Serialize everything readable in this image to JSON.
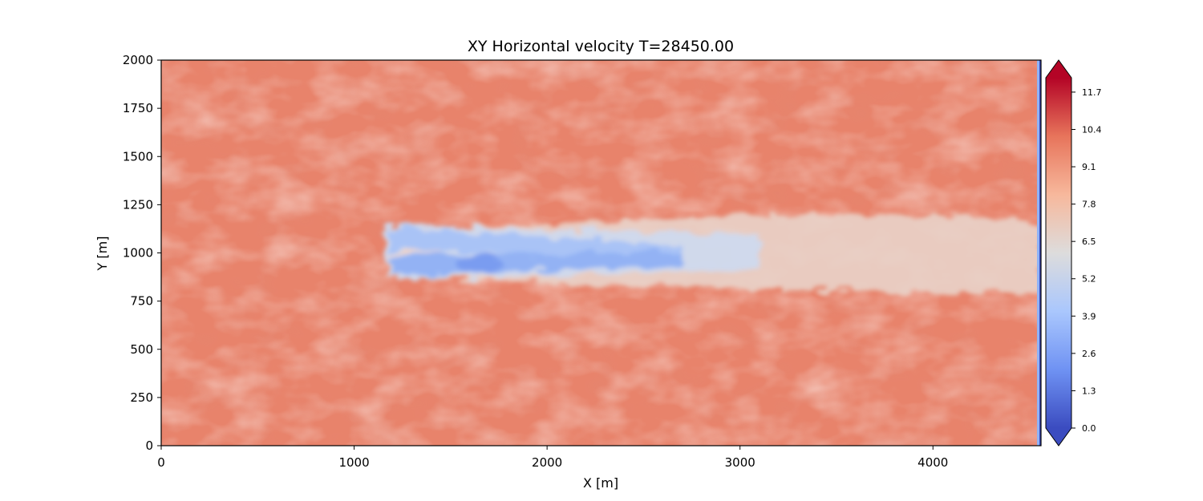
{
  "chart_data": {
    "type": "heatmap",
    "title": "XY Horizontal velocity T=28450.00",
    "xlabel": "X [m]",
    "ylabel": "Y [m]",
    "xlim": [
      0,
      4560
    ],
    "ylim": [
      0,
      2000
    ],
    "x_ticks": [
      "0",
      "1000",
      "2000",
      "3000",
      "4000"
    ],
    "y_ticks": [
      "0",
      "250",
      "500",
      "750",
      "1000",
      "1250",
      "1500",
      "1750",
      "2000"
    ],
    "colorbar": {
      "min": 0.0,
      "max": 12.2,
      "extend": "both",
      "ticks": [
        "0.0",
        "1.3",
        "2.6",
        "3.9",
        "5.2",
        "6.5",
        "7.8",
        "9.1",
        "10.4",
        "11.7"
      ],
      "colormap": "coolwarm",
      "colors": [
        "#3b4cc0",
        "#6f92f3",
        "#aac7fd",
        "#dddcdc",
        "#f7b89c",
        "#e7745b",
        "#b40426"
      ]
    },
    "field": {
      "background_velocity": 9.3,
      "wake": {
        "x_start": 1160,
        "x_end": 4560,
        "y_center": 1000,
        "velocity_core": 4.2,
        "velocity_recovered": 7.0
      },
      "right_edge_strip_velocity": 4.5
    }
  }
}
